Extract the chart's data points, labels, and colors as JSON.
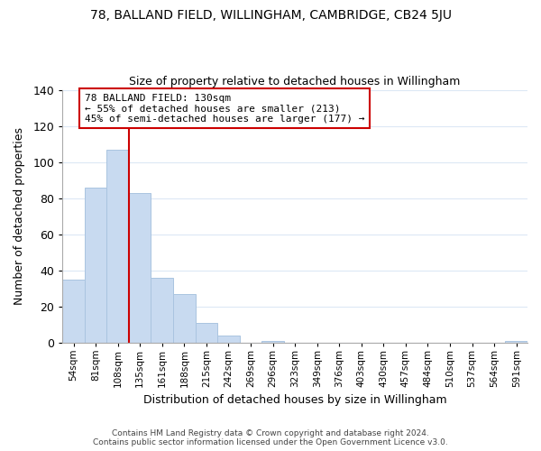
{
  "title": "78, BALLAND FIELD, WILLINGHAM, CAMBRIDGE, CB24 5JU",
  "subtitle": "Size of property relative to detached houses in Willingham",
  "xlabel": "Distribution of detached houses by size in Willingham",
  "ylabel": "Number of detached properties",
  "bar_labels": [
    "54sqm",
    "81sqm",
    "108sqm",
    "135sqm",
    "161sqm",
    "188sqm",
    "215sqm",
    "242sqm",
    "269sqm",
    "296sqm",
    "323sqm",
    "349sqm",
    "376sqm",
    "403sqm",
    "430sqm",
    "457sqm",
    "484sqm",
    "510sqm",
    "537sqm",
    "564sqm",
    "591sqm"
  ],
  "bar_values": [
    35,
    86,
    107,
    83,
    36,
    27,
    11,
    4,
    0,
    1,
    0,
    0,
    0,
    0,
    0,
    0,
    0,
    0,
    0,
    0,
    1
  ],
  "bar_color": "#c8daf0",
  "bar_edge_color": "#aac4e0",
  "vline_x": 3,
  "vline_color": "#cc0000",
  "ylim": [
    0,
    140
  ],
  "yticks": [
    0,
    20,
    40,
    60,
    80,
    100,
    120,
    140
  ],
  "annotation_text": "78 BALLAND FIELD: 130sqm\n← 55% of detached houses are smaller (213)\n45% of semi-detached houses are larger (177) →",
  "annotation_box_color": "#ffffff",
  "annotation_box_edge": "#cc0000",
  "footer_line1": "Contains HM Land Registry data © Crown copyright and database right 2024.",
  "footer_line2": "Contains public sector information licensed under the Open Government Licence v3.0.",
  "background_color": "#ffffff",
  "grid_color": "#dce8f5"
}
